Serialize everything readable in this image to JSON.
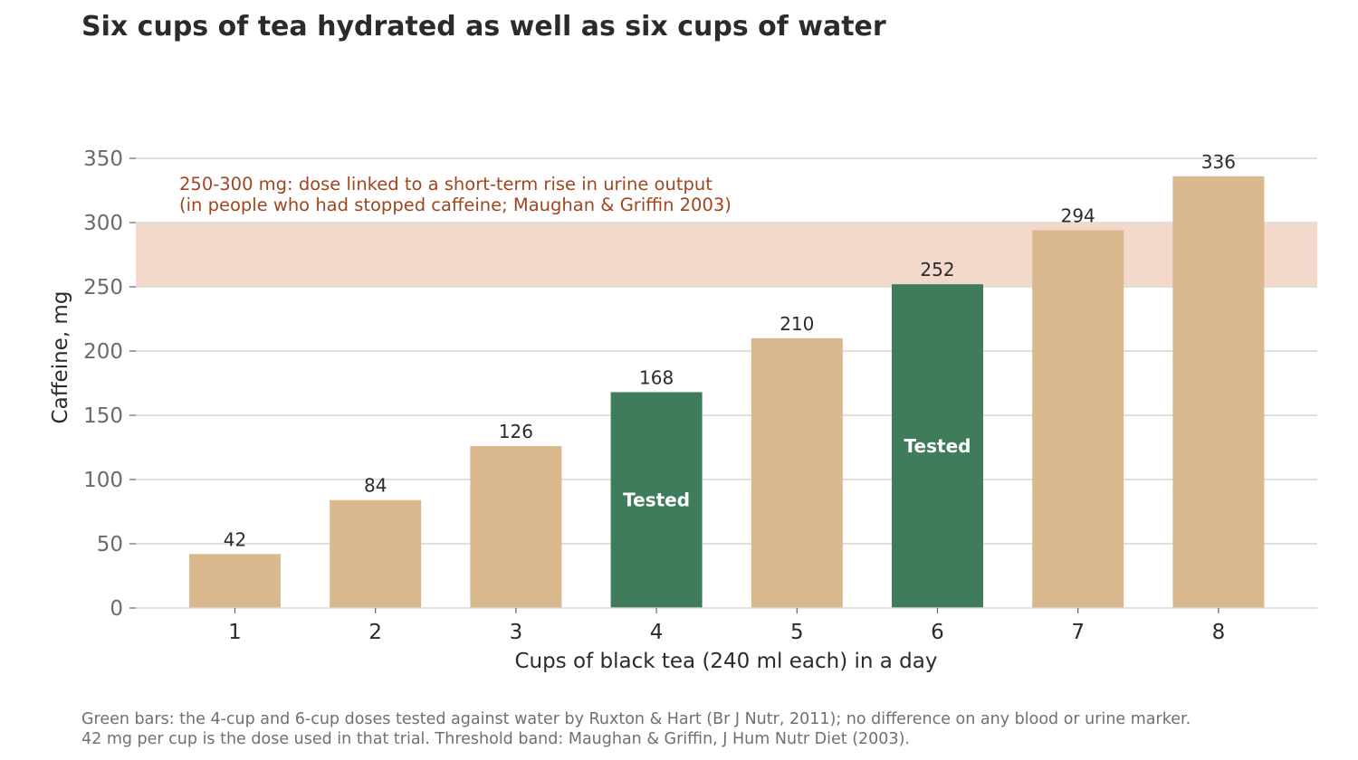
{
  "title": "Six cups of tea hydrated as well as six cups of water",
  "chart_data": {
    "type": "bar",
    "categories": [
      "1",
      "2",
      "3",
      "4",
      "5",
      "6",
      "7",
      "8"
    ],
    "values": [
      42,
      84,
      126,
      168,
      210,
      252,
      294,
      336
    ],
    "highlighted": [
      false,
      false,
      false,
      true,
      false,
      true,
      false,
      false
    ],
    "highlight_label": "Tested",
    "xlabel": "Cups of black tea (240 ml each) in a day",
    "ylabel": "Caffeine, mg",
    "ylim": [
      0,
      350
    ],
    "yticks": [
      0,
      50,
      100,
      150,
      200,
      250,
      300,
      350
    ],
    "grid": true,
    "band": {
      "range": [
        250,
        300
      ],
      "line1": "250-300 mg: dose linked to a short-term rise in urine output",
      "line2": "(in people who had stopped caffeine; Maughan & Griffin 2003)"
    },
    "colors": {
      "bar": "#d8b88c",
      "highlight": "#3e7c5b",
      "band": "#f3d9cb",
      "band_text": "#a0461e",
      "grid": "#e0e0d4"
    }
  },
  "footnote": {
    "line1": "Green bars: the 4-cup and 6-cup doses tested against water by Ruxton & Hart (Br J Nutr, 2011); no difference on any blood or urine marker.",
    "line2": "42 mg per cup is the dose used in that trial. Threshold band: Maughan & Griffin, J Hum Nutr Diet (2003)."
  }
}
